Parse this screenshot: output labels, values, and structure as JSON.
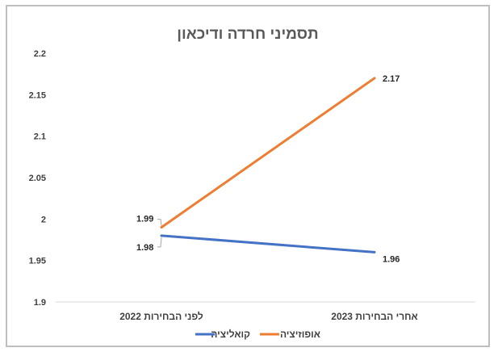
{
  "chart_data": {
    "type": "line",
    "title": "תסמיני חרדה ודיכאון",
    "categories": [
      "לפני הבחירות 2022",
      "אחרי הבחירות 2023"
    ],
    "series": [
      {
        "name": "אופוזיציה",
        "values": [
          1.99,
          2.17
        ],
        "labels": [
          "1.99",
          "2.17"
        ],
        "color": "#ED7D31"
      },
      {
        "name": "קואליציה",
        "values": [
          1.98,
          1.96
        ],
        "labels": [
          "1.98",
          "1.96"
        ],
        "color": "#4472C4"
      }
    ],
    "ylim": [
      1.9,
      2.2
    ],
    "yticks": [
      "1.9",
      "1.95",
      "2",
      "2.05",
      "2.1",
      "2.15",
      "2.2"
    ],
    "grid": false,
    "legend": "bottom"
  }
}
